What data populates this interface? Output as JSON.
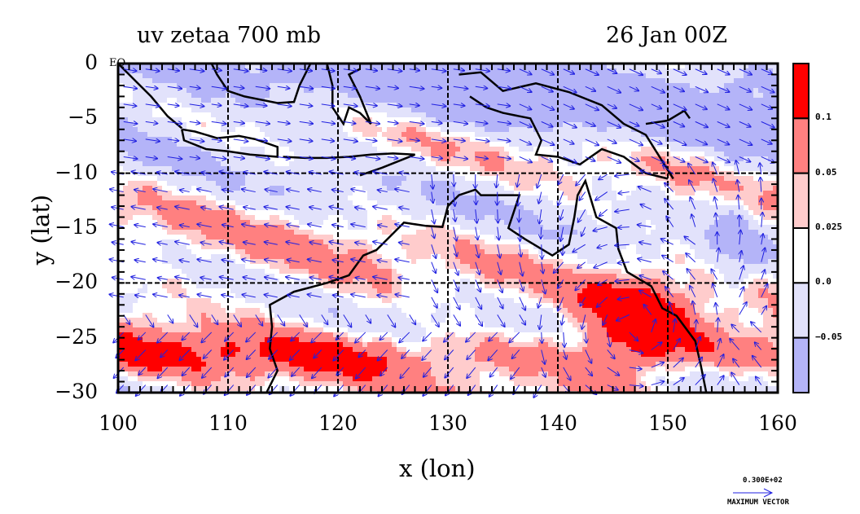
{
  "header": {
    "title_left": "uv zetaa 700 mb",
    "title_right": "26 Jan 00Z"
  },
  "chart_data": {
    "type": "heatmap",
    "subtype": "filled-contour map with wind vectors",
    "title": "uv zetaa 700 mb",
    "time_label": "26 Jan 00Z",
    "xlabel": "x (lon)",
    "ylabel": "y (lat)",
    "xlim": [
      100,
      160
    ],
    "ylim": [
      -30,
      0
    ],
    "x_ticks": [
      "100",
      "110",
      "120",
      "130",
      "140",
      "150",
      "160"
    ],
    "y_ticks": [
      "0",
      "−5",
      "−10",
      "−15",
      "−20",
      "−25",
      "−30"
    ],
    "equator_label": "EQ",
    "grid": true,
    "colorbar": {
      "levels": [
        "0.1",
        "0.05",
        "0.025",
        "0.0",
        "−0.05"
      ],
      "colors": [
        "#ff0000",
        "#ff8080",
        "#ffcccc",
        "#ffffff",
        "#e2e2fb",
        "#b4b4f8"
      ],
      "placement": "right"
    },
    "vector": {
      "color": "#1f1fe0",
      "max_vector_value": "0.300E+02",
      "max_vector_label": "MAXIMUM VECTOR"
    },
    "features": [
      "coastlines",
      "dashed lat/lon grid"
    ]
  },
  "colors": {
    "red_strong": "#ff0000",
    "red_mid": "#ff8080",
    "red_light": "#ffcccc",
    "blue_light": "#e2e2fb",
    "blue_mid": "#b4b4f8",
    "vector_blue": "#1f1fe0",
    "contour_red": "#ff0000",
    "coast": "#000000"
  }
}
